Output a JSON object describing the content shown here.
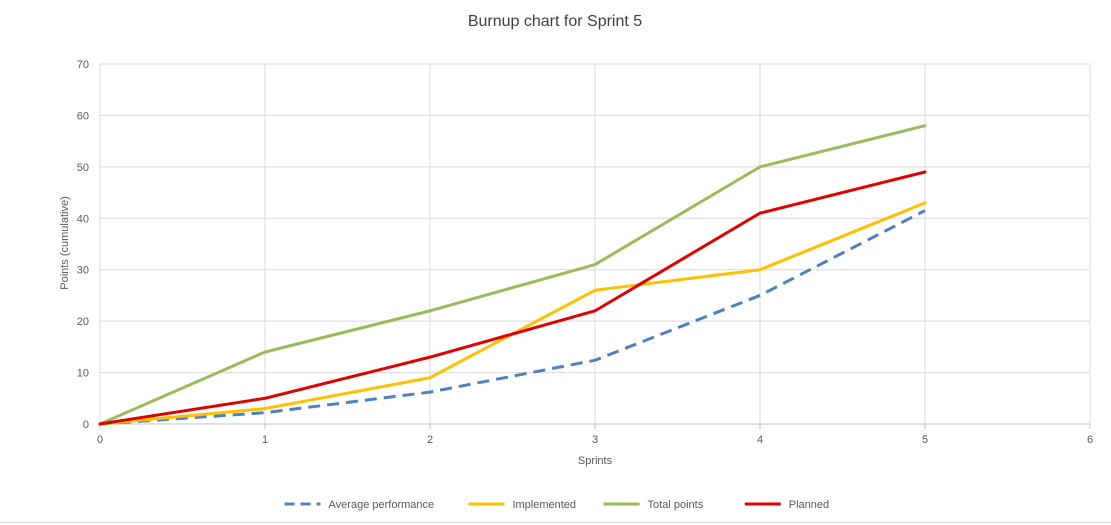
{
  "chart_data": {
    "type": "line",
    "title": "Burnup chart for Sprint 5",
    "xlabel": "Sprints",
    "ylabel": "Points (cumulative)",
    "xlim": [
      0,
      6
    ],
    "ylim": [
      0,
      70
    ],
    "x_ticks": [
      0,
      1,
      2,
      3,
      4,
      5,
      6
    ],
    "y_ticks": [
      0,
      10,
      20,
      30,
      40,
      50,
      60,
      70
    ],
    "grid": true,
    "legend_position": "bottom",
    "x": [
      0,
      1,
      2,
      3,
      4,
      5
    ],
    "series": [
      {
        "name": "Average performance",
        "values": [
          0,
          2.2,
          6.2,
          12.4,
          25,
          41.5
        ],
        "color": "#4f81bd",
        "dashed": true
      },
      {
        "name": "Implemented",
        "values": [
          0,
          3,
          9,
          26,
          30,
          43
        ],
        "color": "#ffc000",
        "dashed": false
      },
      {
        "name": "Total points",
        "values": [
          0,
          14,
          22,
          31,
          50,
          58
        ],
        "color": "#9bbb59",
        "dashed": false
      },
      {
        "name": "Planned",
        "values": [
          0,
          5,
          13,
          22,
          41,
          49
        ],
        "color": "#e00000",
        "dashed": false
      }
    ]
  }
}
